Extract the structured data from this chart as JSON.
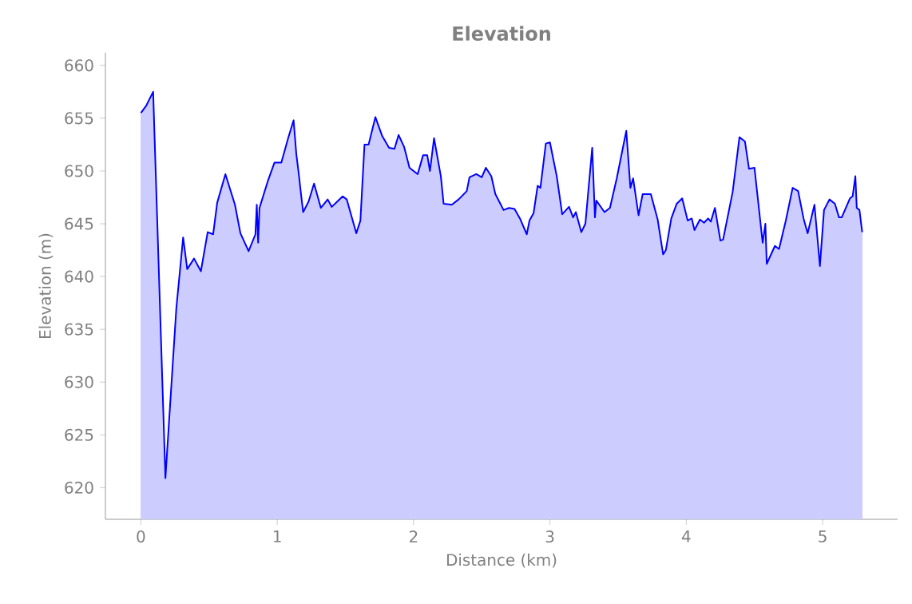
{
  "chart_data": {
    "type": "area",
    "title": "Elevation",
    "xlabel": "Distance (km)",
    "ylabel": "Elevation (m)",
    "xlim": [
      -0.26,
      5.55
    ],
    "ylim": [
      617,
      661.2
    ],
    "xticks": [
      0,
      1,
      2,
      3,
      4,
      5
    ],
    "yticks": [
      620,
      625,
      630,
      635,
      640,
      645,
      650,
      655,
      660
    ],
    "series": [
      {
        "color": "#0000ff",
        "x": [
          0.0,
          0.04,
          0.09,
          0.18,
          0.26,
          0.31,
          0.34,
          0.39,
          0.44,
          0.49,
          0.53,
          0.56,
          0.62,
          0.69,
          0.73,
          0.79,
          0.84,
          0.85,
          0.86,
          0.87,
          0.93,
          0.98,
          1.03,
          1.08,
          1.12,
          1.14,
          1.16,
          1.17,
          1.19,
          1.23,
          1.27,
          1.32,
          1.37,
          1.4,
          1.48,
          1.51,
          1.58,
          1.61,
          1.64,
          1.67,
          1.72,
          1.77,
          1.82,
          1.86,
          1.89,
          1.93,
          1.97,
          2.03,
          2.07,
          2.1,
          2.12,
          2.15,
          2.2,
          2.22,
          2.28,
          2.33,
          2.39,
          2.41,
          2.46,
          2.5,
          2.53,
          2.57,
          2.6,
          2.66,
          2.7,
          2.74,
          2.78,
          2.83,
          2.85,
          2.88,
          2.91,
          2.93,
          2.97,
          3.0,
          3.05,
          3.09,
          3.14,
          3.17,
          3.19,
          3.23,
          3.26,
          3.31,
          3.33,
          3.34,
          3.4,
          3.44,
          3.49,
          3.56,
          3.59,
          3.61,
          3.65,
          3.68,
          3.74,
          3.79,
          3.83,
          3.85,
          3.89,
          3.93,
          3.97,
          4.01,
          4.04,
          4.06,
          4.1,
          4.13,
          4.16,
          4.18,
          4.21,
          4.25,
          4.27,
          4.34,
          4.39,
          4.43,
          4.46,
          4.5,
          4.56,
          4.58,
          4.59,
          4.65,
          4.68,
          4.73,
          4.78,
          4.82,
          4.86,
          4.89,
          4.94,
          4.98,
          5.01,
          5.05,
          5.09,
          5.12,
          5.14,
          5.2,
          5.22,
          5.24,
          5.25,
          5.27,
          5.29
        ],
        "values": [
          655.5,
          656.2,
          657.5,
          620.9,
          637.0,
          643.7,
          640.7,
          641.7,
          640.5,
          644.2,
          644.0,
          647.0,
          649.7,
          646.8,
          644.1,
          642.4,
          644.0,
          646.8,
          643.2,
          646.5,
          649.0,
          650.8,
          650.8,
          653.1,
          654.8,
          651.6,
          649.5,
          648.3,
          646.1,
          647.1,
          648.8,
          646.5,
          647.3,
          646.6,
          647.6,
          647.3,
          644.1,
          645.3,
          652.5,
          652.5,
          655.1,
          653.3,
          652.2,
          652.1,
          653.4,
          652.3,
          650.3,
          649.7,
          651.5,
          651.5,
          650.0,
          653.1,
          649.5,
          646.9,
          646.8,
          647.3,
          648.1,
          649.4,
          649.7,
          649.4,
          650.3,
          649.5,
          647.8,
          646.3,
          646.5,
          646.4,
          645.5,
          644.0,
          645.3,
          646.0,
          648.6,
          648.4,
          652.6,
          652.7,
          649.5,
          645.9,
          646.6,
          645.6,
          646.1,
          644.2,
          645.0,
          652.2,
          645.6,
          647.2,
          646.1,
          646.5,
          649.3,
          653.8,
          648.4,
          649.3,
          645.8,
          647.8,
          647.8,
          645.4,
          642.1,
          642.5,
          645.5,
          646.9,
          647.4,
          645.3,
          645.5,
          644.4,
          645.4,
          645.1,
          645.5,
          645.2,
          646.5,
          643.4,
          643.5,
          648.0,
          653.2,
          652.8,
          650.2,
          650.3,
          643.2,
          645.0,
          641.2,
          642.9,
          642.6,
          645.3,
          648.4,
          648.1,
          645.5,
          644.1,
          646.8,
          641.0,
          646.3,
          647.3,
          646.9,
          645.6,
          645.6,
          647.4,
          647.6,
          649.5,
          646.5,
          646.3,
          644.2
        ]
      }
    ]
  }
}
